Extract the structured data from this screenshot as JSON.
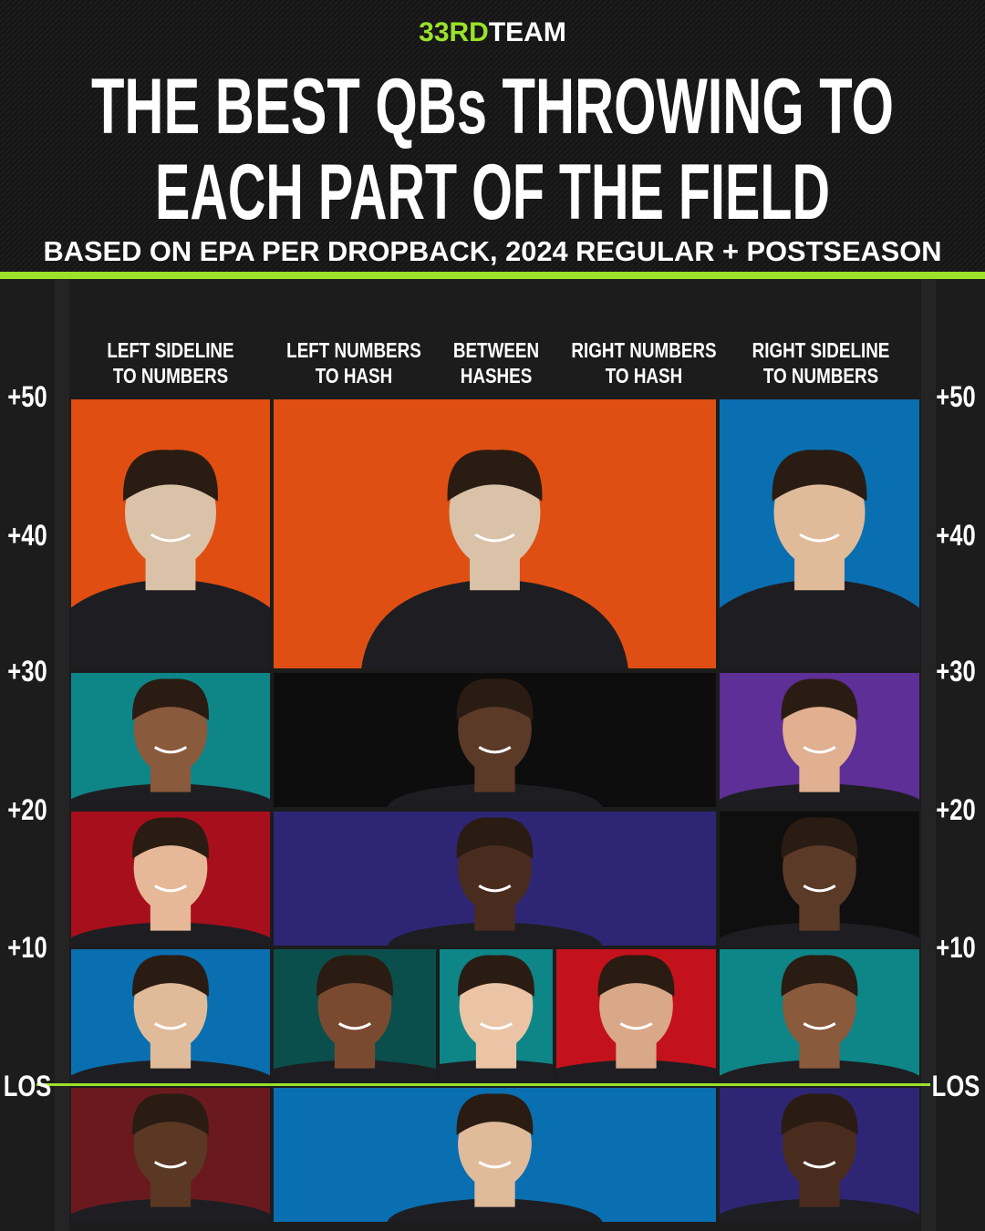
{
  "header": {
    "brand_accent": "33RD",
    "brand": "TEAM",
    "title_lines": [
      "THE BEST QBs THROWING TO",
      "EACH PART OF THE FIELD"
    ],
    "subtitle": "BASED ON EPA PER DROPBACK, 2024 REGULAR + POSTSEASON"
  },
  "columns": [
    [
      "LEFT SIDELINE",
      "TO NUMBERS"
    ],
    [
      "LEFT NUMBERS",
      "TO HASH"
    ],
    [
      "BETWEEN",
      "HASHES"
    ],
    [
      "RIGHT NUMBERS",
      "TO HASH"
    ],
    [
      "RIGHT SIDELINE",
      "TO NUMBERS"
    ]
  ],
  "yard_lines": [
    "+50",
    "+40",
    "+30",
    "+20",
    "+10",
    "LOS"
  ]
}
